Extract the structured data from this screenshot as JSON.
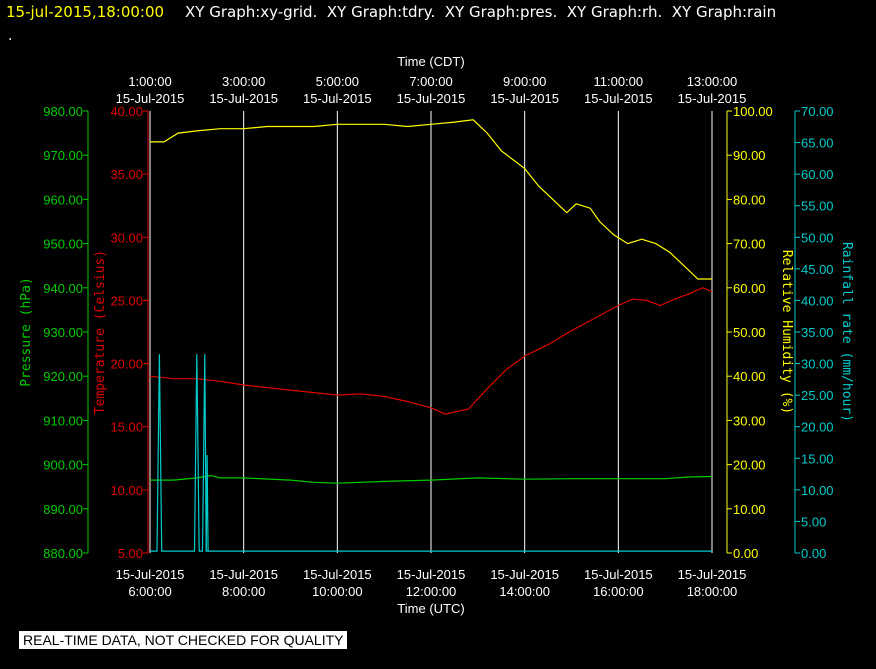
{
  "header": {
    "timestamp": "15-jul-2015,18:00:00",
    "graphs": [
      "XY Graph:xy-grid.",
      "XY Graph:tdry.",
      "XY Graph:pres.",
      "XY Graph:rh.",
      "XY Graph:rain"
    ],
    "dot": "."
  },
  "footer_note": "REAL-TIME DATA, NOT CHECKED FOR QUALITY",
  "colors": {
    "pressure": "#00cc00",
    "temperature": "#dd0000",
    "humidity": "#ffff00",
    "rain": "#00cccc",
    "grid": "#ffffff",
    "timestamp": "#ffff00"
  },
  "chart_data": {
    "type": "line",
    "top_axis": {
      "label": "Time (CDT)",
      "ticks": [
        {
          "time": "1:00:00",
          "date": "15-Jul-2015",
          "utc_hour": 6
        },
        {
          "time": "3:00:00",
          "date": "15-Jul-2015",
          "utc_hour": 8
        },
        {
          "time": "5:00:00",
          "date": "15-Jul-2015",
          "utc_hour": 10
        },
        {
          "time": "7:00:00",
          "date": "15-Jul-2015",
          "utc_hour": 12
        },
        {
          "time": "9:00:00",
          "date": "15-Jul-2015",
          "utc_hour": 14
        },
        {
          "time": "11:00:00",
          "date": "15-Jul-2015",
          "utc_hour": 16
        },
        {
          "time": "13:00:00",
          "date": "15-Jul-2015",
          "utc_hour": 18
        }
      ]
    },
    "bottom_axis": {
      "label": "Time (UTC)",
      "xlim": [
        6,
        18
      ],
      "ticks": [
        {
          "date": "15-Jul-2015",
          "time": "6:00:00",
          "utc_hour": 6
        },
        {
          "date": "15-Jul-2015",
          "time": "8:00:00",
          "utc_hour": 8
        },
        {
          "date": "15-Jul-2015",
          "time": "10:00:00",
          "utc_hour": 10
        },
        {
          "date": "15-Jul-2015",
          "time": "12:00:00",
          "utc_hour": 12
        },
        {
          "date": "15-Jul-2015",
          "time": "14:00:00",
          "utc_hour": 14
        },
        {
          "date": "15-Jul-2015",
          "time": "16:00:00",
          "utc_hour": 16
        },
        {
          "date": "15-Jul-2015",
          "time": "18:00:00",
          "utc_hour": 18
        }
      ]
    },
    "vertical_gridlines_utc_hour": [
      6,
      8,
      10,
      12,
      14,
      16,
      18
    ],
    "axes": [
      {
        "id": "pressure",
        "label": "Pressure (hPa)",
        "side": "left-outer",
        "ylim": [
          880,
          980
        ],
        "ticks": [
          "880.00",
          "890.00",
          "900.00",
          "910.00",
          "920.00",
          "930.00",
          "940.00",
          "950.00",
          "960.00",
          "970.00",
          "980.00"
        ]
      },
      {
        "id": "temperature",
        "label": "Temperature (Celsius)",
        "side": "left-inner",
        "ylim": [
          5,
          40
        ],
        "ticks": [
          "5.00",
          "10.00",
          "15.00",
          "20.00",
          "25.00",
          "30.00",
          "35.00",
          "40.00"
        ]
      },
      {
        "id": "humidity",
        "label": "Relative Humidity (%)",
        "side": "right-inner",
        "ylim": [
          0,
          100
        ],
        "ticks": [
          "0.00",
          "10.00",
          "20.00",
          "30.00",
          "40.00",
          "50.00",
          "60.00",
          "70.00",
          "80.00",
          "90.00",
          "100.00"
        ]
      },
      {
        "id": "rain",
        "label": "Rainfall rate (mm/hour)",
        "side": "right-outer",
        "ylim": [
          0,
          70
        ],
        "ticks": [
          "0.00",
          "5.00",
          "10.00",
          "15.00",
          "20.00",
          "25.00",
          "30.00",
          "35.00",
          "40.00",
          "45.00",
          "50.00",
          "55.00",
          "60.00",
          "65.00",
          "70.00"
        ]
      }
    ],
    "series": [
      {
        "axis": "humidity",
        "x": [
          6.0,
          6.3,
          6.6,
          7.0,
          7.5,
          8.0,
          8.5,
          9.0,
          9.5,
          10.0,
          10.5,
          11.0,
          11.5,
          12.0,
          12.5,
          12.9,
          13.2,
          13.5,
          14.0,
          14.3,
          14.6,
          14.9,
          15.1,
          15.4,
          15.6,
          15.9,
          16.2,
          16.5,
          16.8,
          17.1,
          17.4,
          17.7,
          17.9,
          18.0
        ],
        "values": [
          93,
          93,
          95,
          95.5,
          96,
          96,
          96.5,
          96.5,
          96.5,
          97,
          97,
          97,
          96.5,
          97,
          97.5,
          98,
          95,
          91,
          87,
          83,
          80,
          77,
          79,
          78,
          75,
          72,
          70,
          71,
          70,
          68,
          65,
          62,
          62,
          62
        ]
      },
      {
        "axis": "temperature",
        "x": [
          6.0,
          6.5,
          7.0,
          7.5,
          8.0,
          8.5,
          9.0,
          9.5,
          10.0,
          10.5,
          11.0,
          11.5,
          12.0,
          12.3,
          12.8,
          13.2,
          13.6,
          14.0,
          14.5,
          15.0,
          15.5,
          16.0,
          16.3,
          16.6,
          16.9,
          17.2,
          17.5,
          17.8,
          18.0
        ],
        "values": [
          19,
          18.8,
          18.8,
          18.6,
          18.3,
          18.1,
          17.9,
          17.7,
          17.5,
          17.6,
          17.4,
          17.0,
          16.5,
          16.0,
          16.4,
          18.0,
          19.5,
          20.6,
          21.5,
          22.6,
          23.6,
          24.6,
          25.1,
          25.0,
          24.6,
          25.1,
          25.5,
          26.0,
          25.7
        ]
      },
      {
        "axis": "pressure",
        "x": [
          6.0,
          6.5,
          7.0,
          7.3,
          7.5,
          8.0,
          9.0,
          9.5,
          10.0,
          11.0,
          12.0,
          13.0,
          14.0,
          15.0,
          16.0,
          17.0,
          17.5,
          18.0
        ],
        "values": [
          896.5,
          896.5,
          897.0,
          897.5,
          897.0,
          897.0,
          896.5,
          896.0,
          895.8,
          896.2,
          896.5,
          897.0,
          896.7,
          896.8,
          896.8,
          896.8,
          897.2,
          897.3
        ]
      },
      {
        "axis": "rain",
        "x": [
          6.0,
          6.05,
          6.15,
          6.2,
          6.25,
          6.95,
          7.0,
          7.05,
          7.12,
          7.17,
          7.2,
          7.25,
          18.0
        ],
        "values": [
          0.3,
          0.3,
          0.3,
          31.5,
          0.3,
          0.3,
          31.5,
          0.3,
          0.3,
          31.5,
          0.3,
          0.3,
          0.3
        ]
      },
      {
        "axis": "rain",
        "x": [
          7.2,
          7.22,
          7.24
        ],
        "values": [
          0.3,
          15.5,
          0.3
        ]
      }
    ]
  }
}
